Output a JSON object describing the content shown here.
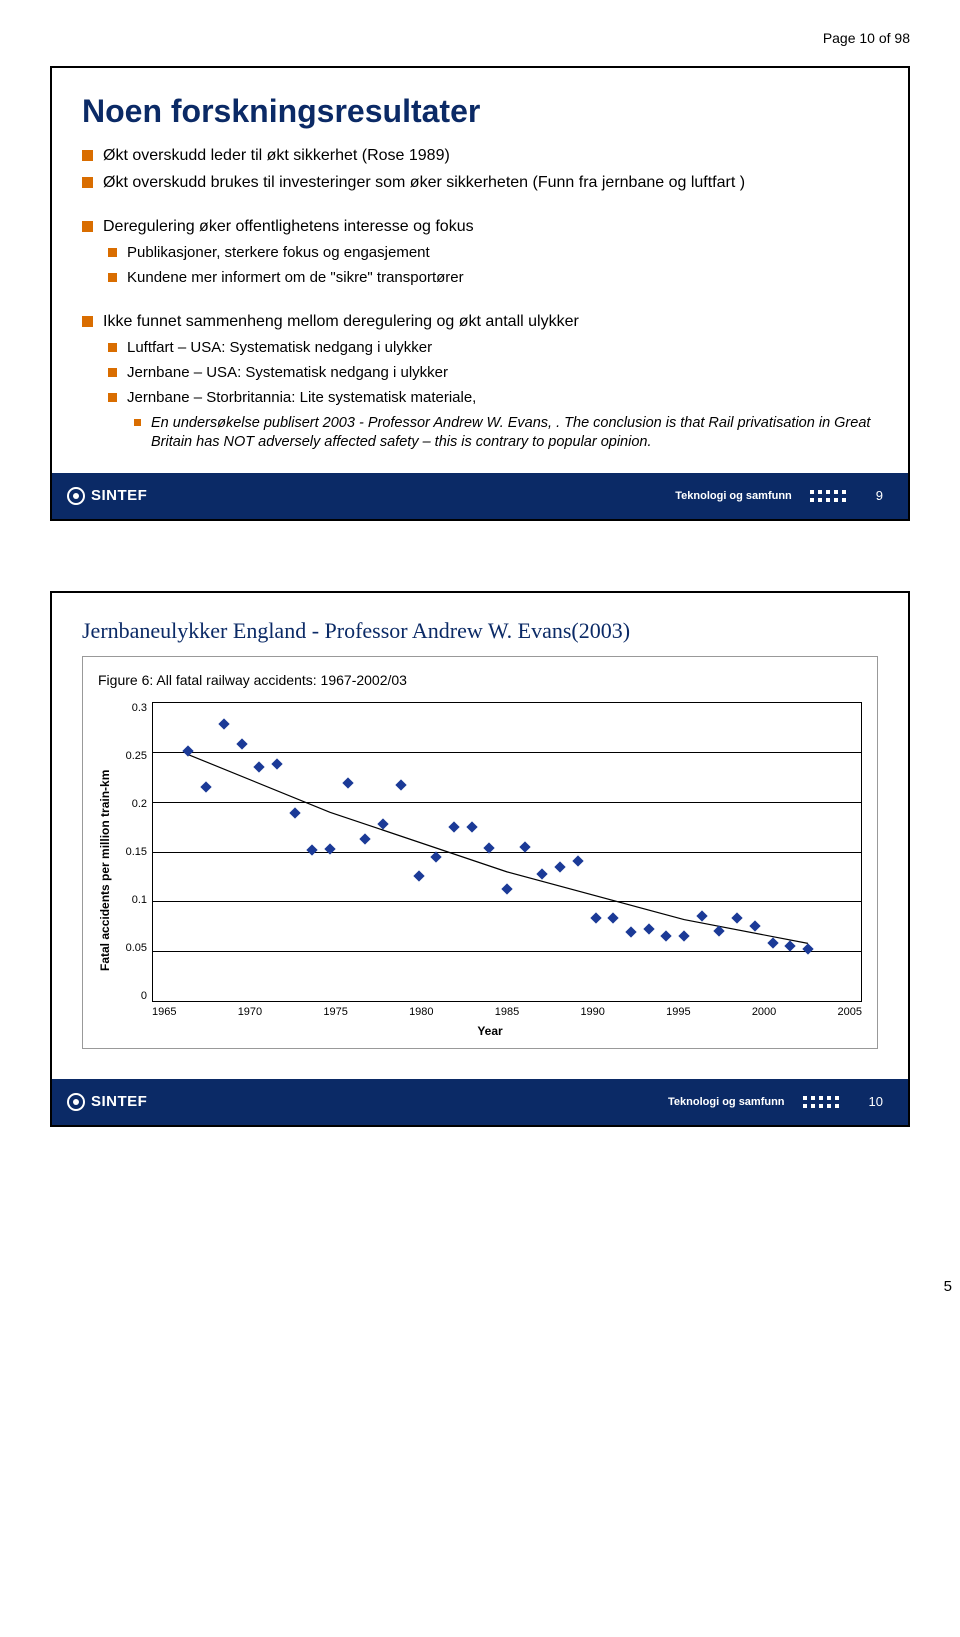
{
  "page_header": "Page 10 of 98",
  "page_number": "5",
  "bullet_color": "#d96d00",
  "footer": {
    "brand": "SINTEF",
    "center": "Teknologi og samfunn"
  },
  "slide1": {
    "title": "Noen  forskningsresultater",
    "number": "9",
    "bullets": [
      {
        "lvl": 0,
        "t": "Økt overskudd leder til økt sikkerhet (Rose 1989)"
      },
      {
        "lvl": 0,
        "t": "Økt overskudd brukes til investeringer som øker sikkerheten (Funn fra jernbane og luftfart )"
      },
      {
        "spacer": true
      },
      {
        "lvl": 0,
        "t": "Deregulering øker offentlighetens interesse og fokus"
      },
      {
        "lvl": 1,
        "t": "Publikasjoner, sterkere fokus og engasjement"
      },
      {
        "lvl": 1,
        "t": "Kundene mer informert om de \"sikre\" transportører"
      },
      {
        "spacer": true
      },
      {
        "lvl": 0,
        "t": "Ikke funnet sammenheng mellom deregulering og økt antall ulykker"
      },
      {
        "lvl": 1,
        "t": "Luftfart – USA: Systematisk nedgang i ulykker"
      },
      {
        "lvl": 1,
        "t": "Jernbane – USA: Systematisk nedgang i ulykker"
      },
      {
        "lvl": 1,
        "t": "Jernbane – Storbritannia: Lite systematisk materiale,"
      },
      {
        "lvl": 2,
        "it": true,
        "t": "En undersøkelse publisert 2003 - Professor Andrew W. Evans, . The conclusion  is that Rail privatisation in Great Britain has NOT adversely affected safety – this is contrary to popular opinion."
      }
    ]
  },
  "slide2": {
    "title": "Jernbaneulykker England - Professor Andrew W. Evans(2003)",
    "number": "10",
    "chart": {
      "caption": "Figure 6: All fatal railway accidents: 1967-2002/03",
      "ylabel": "Fatal accidents per million train-km",
      "xlabel": "Year",
      "yticks": [
        "0.3",
        "0.25",
        "0.2",
        "0.15",
        "0.1",
        "0.05",
        "0"
      ],
      "xticks": [
        "1965",
        "1970",
        "1975",
        "1980",
        "1985",
        "1990",
        "1995",
        "2000",
        "2005"
      ],
      "xmin": 1965,
      "xmax": 2005,
      "ymin": 0,
      "ymax": 0.3,
      "grid_y": [
        0.05,
        0.1,
        0.15,
        0.2,
        0.25
      ],
      "point_color": "#1b3a97",
      "trend_color": "#000000",
      "trend": [
        [
          1967,
          0.248
        ],
        [
          1975,
          0.19
        ],
        [
          1985,
          0.13
        ],
        [
          1995,
          0.082
        ],
        [
          2002,
          0.058
        ]
      ],
      "points": [
        [
          1967,
          0.251
        ],
        [
          1968,
          0.215
        ],
        [
          1969,
          0.279
        ],
        [
          1970,
          0.258
        ],
        [
          1971,
          0.235
        ],
        [
          1972,
          0.238
        ],
        [
          1973,
          0.189
        ],
        [
          1974,
          0.152
        ],
        [
          1975,
          0.153
        ],
        [
          1976,
          0.219
        ],
        [
          1977,
          0.163
        ],
        [
          1978,
          0.178
        ],
        [
          1979,
          0.217
        ],
        [
          1980,
          0.126
        ],
        [
          1981,
          0.145
        ],
        [
          1982,
          0.175
        ],
        [
          1983,
          0.175
        ],
        [
          1984,
          0.154
        ],
        [
          1985,
          0.112
        ],
        [
          1986,
          0.155
        ],
        [
          1987,
          0.128
        ],
        [
          1988,
          0.135
        ],
        [
          1989,
          0.141
        ],
        [
          1990,
          0.083
        ],
        [
          1991,
          0.083
        ],
        [
          1992,
          0.069
        ],
        [
          1993,
          0.072
        ],
        [
          1994,
          0.065
        ],
        [
          1995,
          0.065
        ],
        [
          1996,
          0.085
        ],
        [
          1997,
          0.07
        ],
        [
          1998,
          0.083
        ],
        [
          1999,
          0.075
        ],
        [
          2000,
          0.058
        ],
        [
          2001,
          0.055
        ],
        [
          2002,
          0.052
        ]
      ]
    }
  }
}
